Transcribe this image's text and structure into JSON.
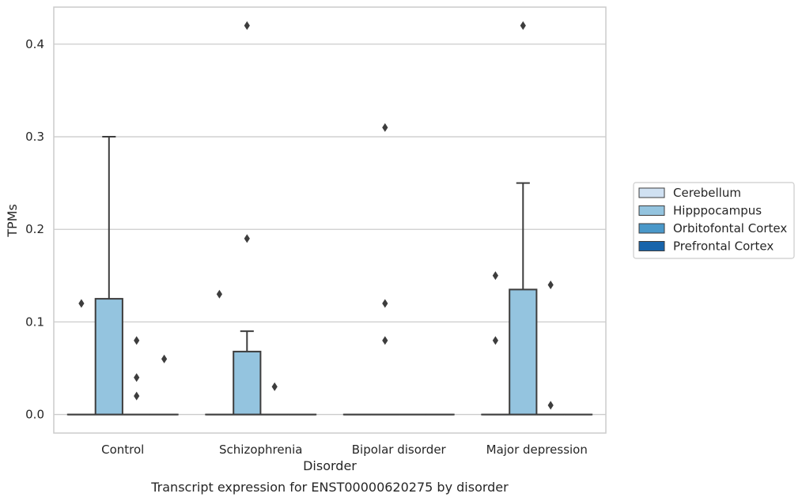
{
  "caption": "Transcript expression for ENST00000620275 by disorder",
  "chart_data": {
    "type": "box",
    "title": "",
    "xlabel": "Disorder",
    "ylabel": "TPMs",
    "ylim": [
      -0.02,
      0.44
    ],
    "yticks": [
      0.0,
      0.1,
      0.2,
      0.3,
      0.4
    ],
    "ytick_labels": [
      "0.0",
      "0.1",
      "0.2",
      "0.3",
      "0.4"
    ],
    "grid": "horizontal",
    "legend_placement": "right",
    "categories": [
      "Control",
      "Schizophrenia",
      "Bipolar disorder",
      "Major depression"
    ],
    "hue_groups": [
      {
        "name": "Cerebellum",
        "color": "#d0e1f2"
      },
      {
        "name": "Hipppocampus",
        "color": "#94c4df"
      },
      {
        "name": "Orbitofontal Cortex",
        "color": "#4a98c9"
      },
      {
        "name": "Prefrontal Cortex",
        "color": "#1764ab"
      }
    ],
    "boxes": [
      {
        "category": "Control",
        "group": "Cerebellum",
        "q1": 0,
        "median": 0,
        "q3": 0,
        "whisker_low": 0,
        "whisker_high": 0,
        "outliers": [
          0.12
        ]
      },
      {
        "category": "Control",
        "group": "Hipppocampus",
        "q1": 0,
        "median": 0,
        "q3": 0.125,
        "whisker_low": 0,
        "whisker_high": 0.3,
        "outliers": []
      },
      {
        "category": "Control",
        "group": "Orbitofontal Cortex",
        "q1": 0,
        "median": 0,
        "q3": 0,
        "whisker_low": 0,
        "whisker_high": 0,
        "outliers": [
          0.08,
          0.04,
          0.02
        ]
      },
      {
        "category": "Control",
        "group": "Prefrontal Cortex",
        "q1": 0,
        "median": 0,
        "q3": 0,
        "whisker_low": 0,
        "whisker_high": 0,
        "outliers": [
          0.06
        ]
      },
      {
        "category": "Schizophrenia",
        "group": "Cerebellum",
        "q1": 0,
        "median": 0,
        "q3": 0,
        "whisker_low": 0,
        "whisker_high": 0,
        "outliers": [
          0.13
        ]
      },
      {
        "category": "Schizophrenia",
        "group": "Hipppocampus",
        "q1": 0,
        "median": 0,
        "q3": 0.068,
        "whisker_low": 0,
        "whisker_high": 0.09,
        "outliers": [
          0.42,
          0.19
        ]
      },
      {
        "category": "Schizophrenia",
        "group": "Orbitofontal Cortex",
        "q1": 0,
        "median": 0,
        "q3": 0,
        "whisker_low": 0,
        "whisker_high": 0,
        "outliers": [
          0.03
        ]
      },
      {
        "category": "Schizophrenia",
        "group": "Prefrontal Cortex",
        "q1": 0,
        "median": 0,
        "q3": 0,
        "whisker_low": 0,
        "whisker_high": 0,
        "outliers": []
      },
      {
        "category": "Bipolar disorder",
        "group": "Cerebellum",
        "q1": 0,
        "median": 0,
        "q3": 0,
        "whisker_low": 0,
        "whisker_high": 0,
        "outliers": []
      },
      {
        "category": "Bipolar disorder",
        "group": "Hipppocampus",
        "q1": 0,
        "median": 0,
        "q3": 0,
        "whisker_low": 0,
        "whisker_high": 0,
        "outliers": [
          0.31,
          0.12,
          0.08
        ]
      },
      {
        "category": "Bipolar disorder",
        "group": "Orbitofontal Cortex",
        "q1": 0,
        "median": 0,
        "q3": 0,
        "whisker_low": 0,
        "whisker_high": 0,
        "outliers": []
      },
      {
        "category": "Bipolar disorder",
        "group": "Prefrontal Cortex",
        "q1": 0,
        "median": 0,
        "q3": 0,
        "whisker_low": 0,
        "whisker_high": 0,
        "outliers": []
      },
      {
        "category": "Major depression",
        "group": "Cerebellum",
        "q1": 0,
        "median": 0,
        "q3": 0,
        "whisker_low": 0,
        "whisker_high": 0,
        "outliers": [
          0.15,
          0.08
        ]
      },
      {
        "category": "Major depression",
        "group": "Hipppocampus",
        "q1": 0,
        "median": 0,
        "q3": 0.135,
        "whisker_low": 0,
        "whisker_high": 0.25,
        "outliers": [
          0.42
        ]
      },
      {
        "category": "Major depression",
        "group": "Orbitofontal Cortex",
        "q1": 0,
        "median": 0,
        "q3": 0,
        "whisker_low": 0,
        "whisker_high": 0,
        "outliers": [
          0.14,
          0.01
        ]
      },
      {
        "category": "Major depression",
        "group": "Prefrontal Cortex",
        "q1": 0,
        "median": 0,
        "q3": 0,
        "whisker_low": 0,
        "whisker_high": 0,
        "outliers": []
      }
    ]
  }
}
